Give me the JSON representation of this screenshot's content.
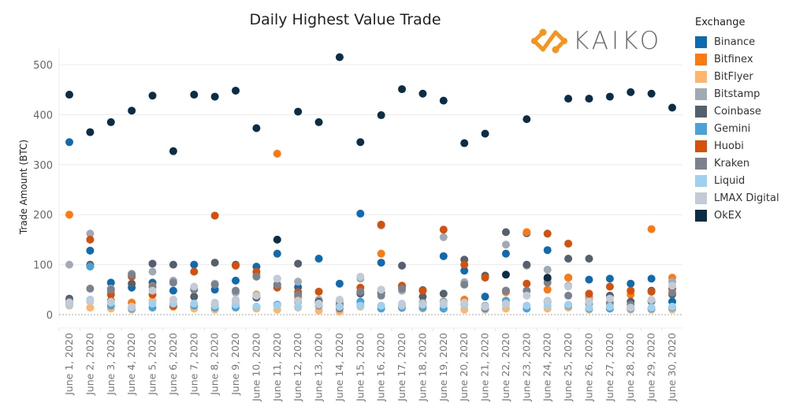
{
  "chart_data": {
    "type": "scatter",
    "title": "Daily Highest Value Trade",
    "xlabel": "",
    "ylabel": "Trade Amount (BTC)",
    "ylim": [
      0,
      540
    ],
    "yticks": [
      0,
      100,
      200,
      300,
      400,
      500
    ],
    "grid": true,
    "legend_title": "Exchange",
    "legend_position": "right",
    "categories": [
      "June 1, 2020",
      "June 2, 2020",
      "June 3, 2020",
      "June 4, 2020",
      "June 5, 2020",
      "June 6, 2020",
      "June 7, 2020",
      "June 8, 2020",
      "June 9, 2020",
      "June 10, 2020",
      "June 11, 2020",
      "June 12, 2020",
      "June 13, 2020",
      "June 14, 2020",
      "June 15, 2020",
      "June 16, 2020",
      "June 17, 2020",
      "June 18, 2020",
      "June 19, 2020",
      "June 20, 2020",
      "June 21, 2020",
      "June 22, 2020",
      "June 23, 2020",
      "June 24, 2020",
      "June 25, 2020",
      "June 26, 2020",
      "June 27, 2020",
      "June 28, 2020",
      "June 29, 2020",
      "June 30, 2020"
    ],
    "series": [
      {
        "name": "Binance",
        "color": "#0f6bb0",
        "values": [
          345,
          128,
          64,
          54,
          64,
          48,
          100,
          50,
          68,
          96,
          122,
          55,
          112,
          62,
          202,
          104,
          56,
          49,
          117,
          88,
          36,
          122,
          163,
          129,
          74,
          70,
          72,
          62,
          72,
          26
        ]
      },
      {
        "name": "Bitfinex",
        "color": "#ff7a0d",
        "values": [
          200,
          98,
          47,
          24,
          57,
          16,
          36,
          20,
          18,
          40,
          322,
          35,
          24,
          22,
          19,
          122,
          17,
          13,
          12,
          30,
          12,
          45,
          165,
          50,
          74,
          35,
          12,
          40,
          171,
          74
        ]
      },
      {
        "name": "BitFlyer",
        "color": "#ffb56b",
        "values": [
          18,
          14,
          12,
          10,
          28,
          30,
          12,
          10,
          26,
          12,
          10,
          14,
          8,
          6,
          16,
          16,
          13,
          12,
          13,
          10,
          10,
          12,
          18,
          12,
          14,
          10,
          12,
          10,
          10,
          10
        ]
      },
      {
        "name": "Bitstamp",
        "color": "#a1a9b4",
        "values": [
          100,
          162,
          52,
          82,
          86,
          68,
          52,
          62,
          44,
          80,
          72,
          66,
          30,
          28,
          72,
          178,
          48,
          18,
          155,
          65,
          18,
          140,
          98,
          90,
          58,
          30,
          25,
          14,
          28,
          66
        ]
      },
      {
        "name": "Coinbase",
        "color": "#55606e",
        "values": [
          32,
          100,
          28,
          62,
          102,
          100,
          36,
          104,
          100,
          34,
          60,
          102,
          26,
          18,
          42,
          44,
          98,
          36,
          42,
          110,
          78,
          165,
          100,
          72,
          112,
          112,
          38,
          26,
          48,
          40
        ]
      },
      {
        "name": "Gemini",
        "color": "#4aa3d8",
        "values": [
          22,
          96,
          18,
          12,
          14,
          18,
          18,
          14,
          14,
          16,
          20,
          26,
          22,
          22,
          26,
          12,
          14,
          14,
          12,
          20,
          12,
          28,
          12,
          26,
          18,
          12,
          12,
          12,
          12,
          14
        ]
      },
      {
        "name": "Huobi",
        "color": "#d5500b",
        "values": [
          24,
          150,
          40,
          76,
          40,
          18,
          86,
          198,
          98,
          86,
          54,
          45,
          46,
          18,
          54,
          180,
          58,
          48,
          170,
          100,
          74,
          48,
          62,
          162,
          142,
          42,
          56,
          48,
          46,
          52
        ]
      },
      {
        "name": "Kraken",
        "color": "#7a838d",
        "values": [
          26,
          52,
          50,
          80,
          55,
          64,
          50,
          60,
          48,
          76,
          60,
          40,
          18,
          12,
          46,
          38,
          52,
          24,
          26,
          60,
          14,
          48,
          48,
          64,
          38,
          22,
          22,
          20,
          26,
          44
        ]
      },
      {
        "name": "Liquid",
        "color": "#9fd0ee",
        "values": [
          20,
          30,
          24,
          14,
          22,
          22,
          22,
          18,
          20,
          16,
          18,
          16,
          20,
          16,
          18,
          18,
          18,
          20,
          20,
          20,
          16,
          20,
          18,
          18,
          20,
          14,
          16,
          14,
          14,
          16
        ]
      },
      {
        "name": "LMAX Digital",
        "color": "#c3cbd6",
        "values": [
          24,
          26,
          26,
          16,
          48,
          30,
          56,
          24,
          30,
          38,
          72,
          28,
          22,
          30,
          76,
          50,
          22,
          22,
          24,
          24,
          16,
          22,
          38,
          28,
          56,
          26,
          32,
          14,
          30,
          58
        ]
      },
      {
        "name": "OkEX",
        "color": "#0b2e46",
        "values": [
          440,
          365,
          385,
          408,
          438,
          327,
          440,
          436,
          448,
          373,
          150,
          406,
          385,
          515,
          345,
          399,
          451,
          442,
          428,
          343,
          362,
          80,
          391,
          74,
          432,
          432,
          436,
          445,
          442,
          414
        ]
      }
    ]
  },
  "logo": {
    "text": "KAIKO"
  }
}
